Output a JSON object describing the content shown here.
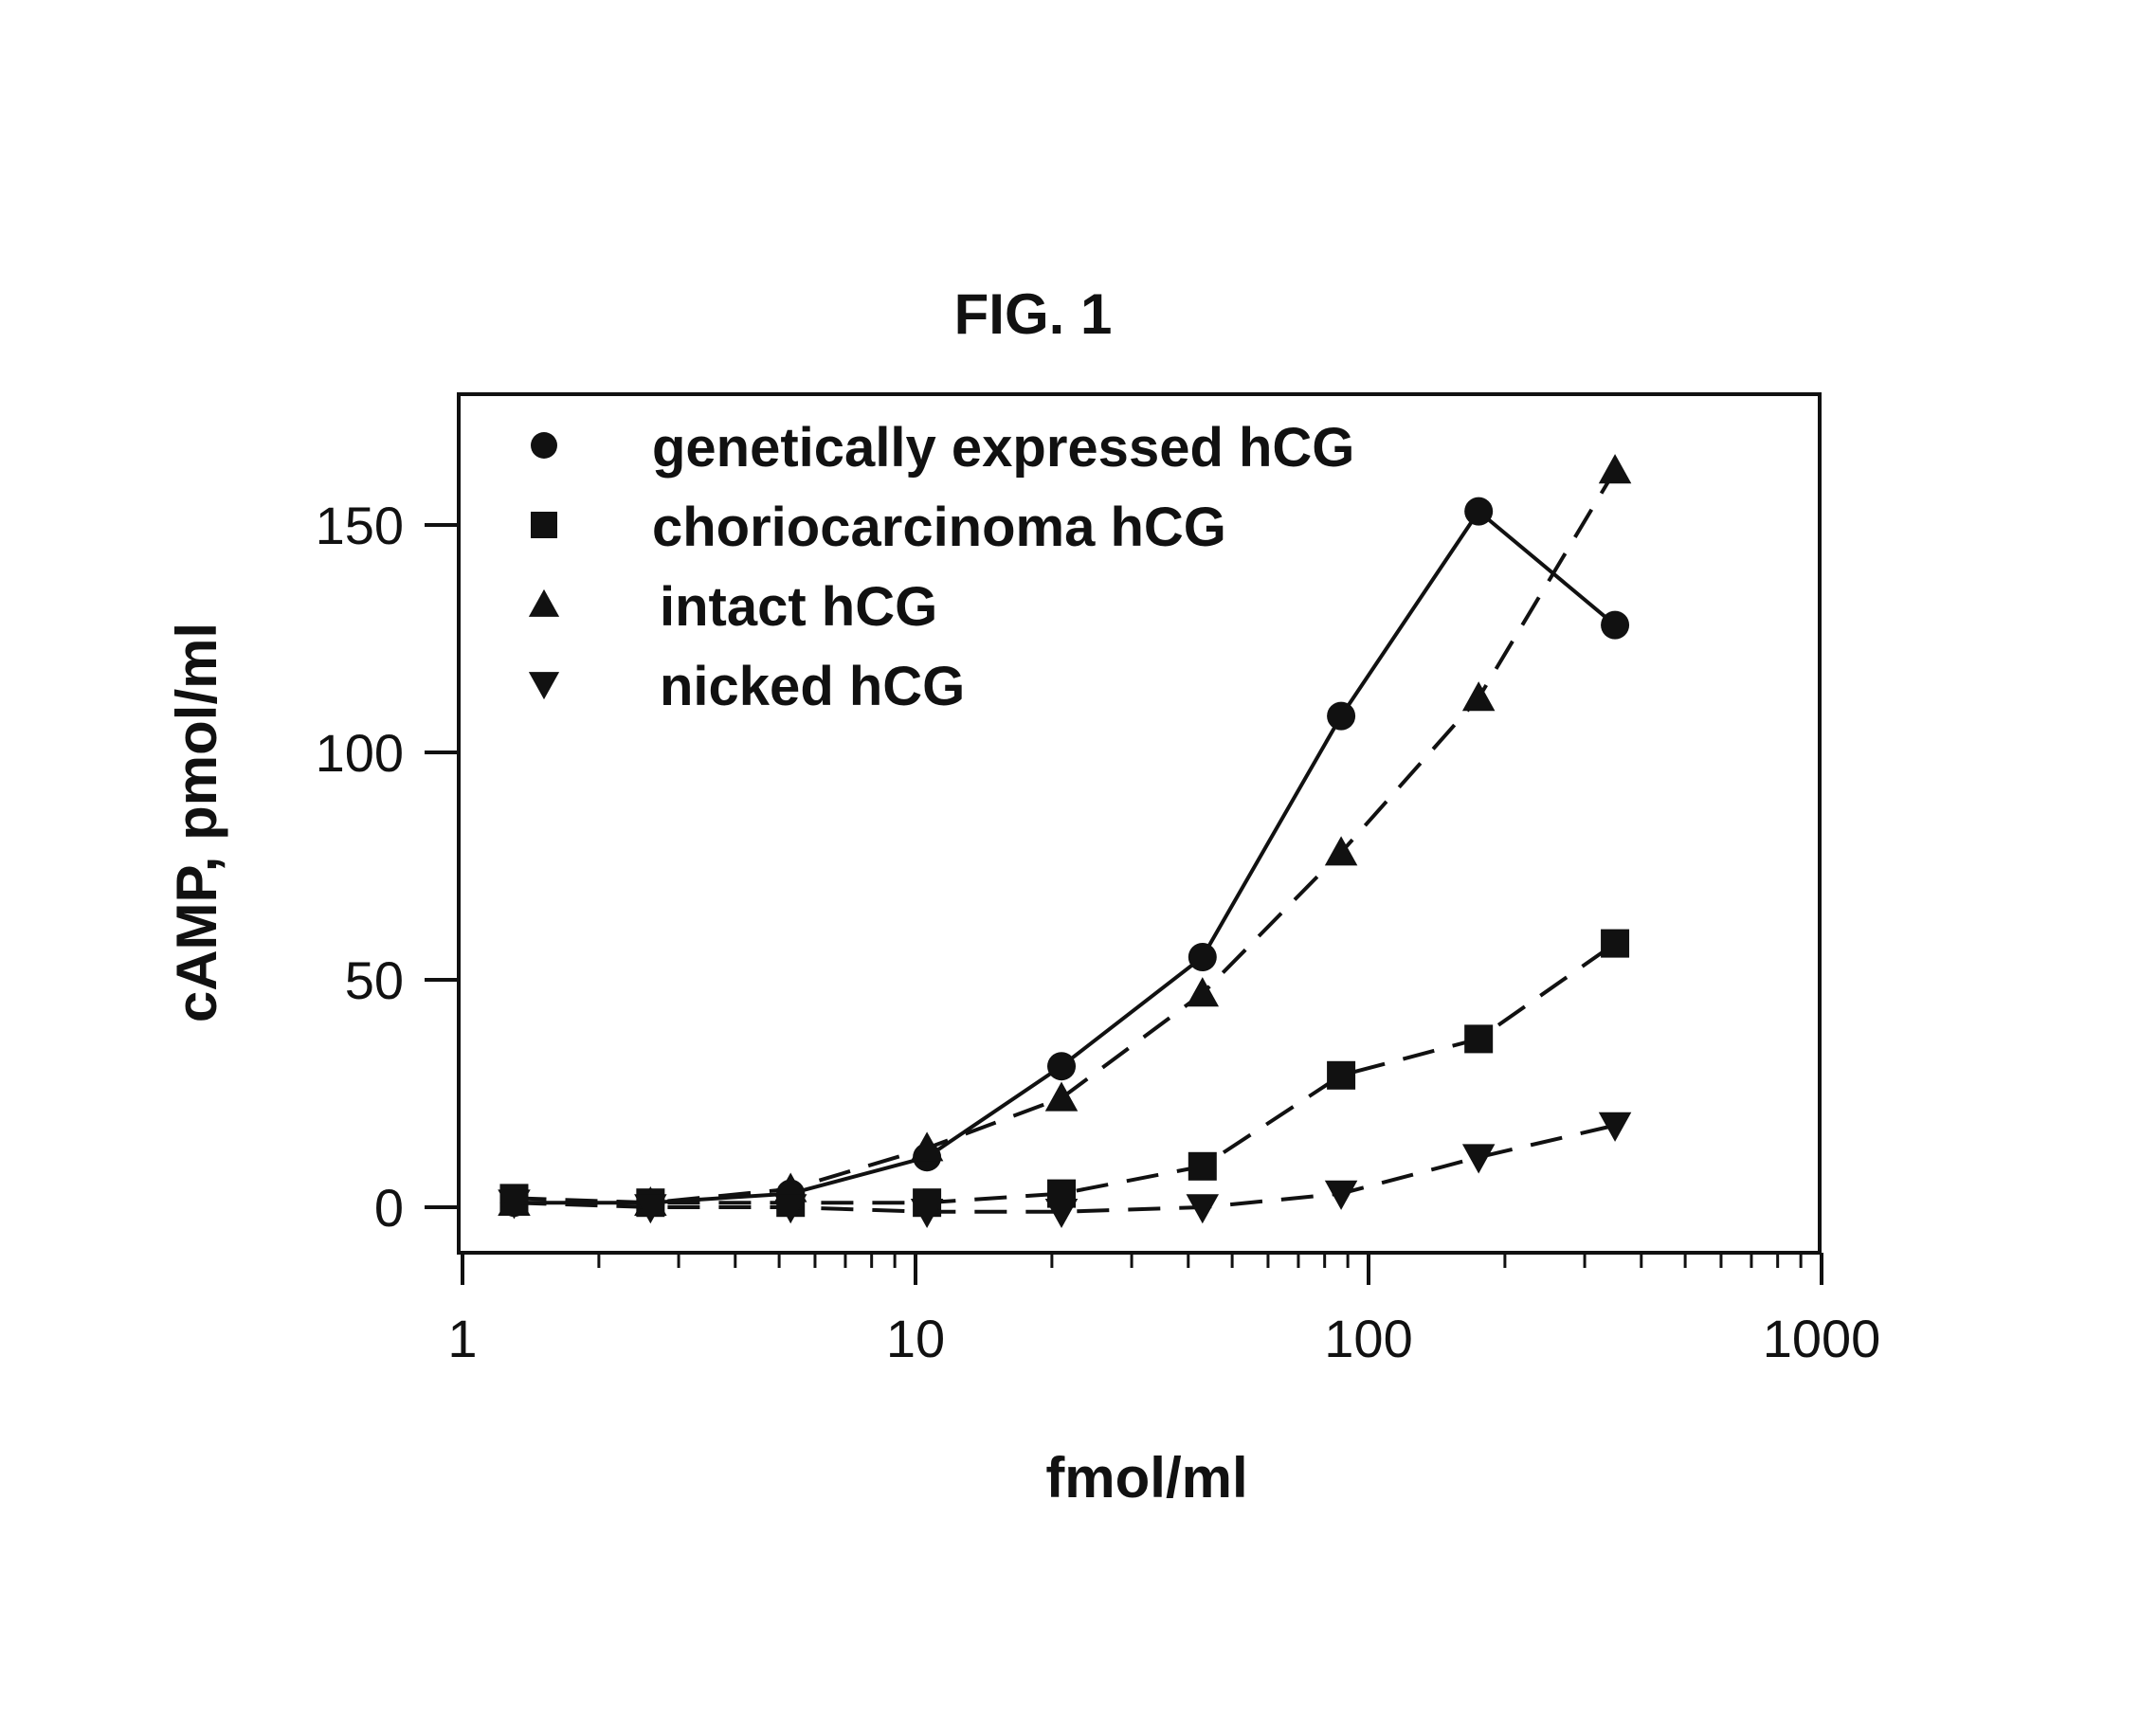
{
  "chart_data": {
    "type": "line",
    "title": "FIG. 1",
    "xlabel": "fmol/ml",
    "ylabel": "cAMP, pmol/ml",
    "x_scale": "log",
    "xlim": [
      1,
      1000
    ],
    "ylim": [
      -10,
      180
    ],
    "x_ticks": [
      1,
      10,
      100,
      1000
    ],
    "x_tick_labels": [
      "1",
      "10",
      "100",
      "1000"
    ],
    "y_ticks": [
      0,
      50,
      100,
      150
    ],
    "y_tick_labels": [
      "0",
      "50",
      "100",
      "150"
    ],
    "grid": false,
    "legend_position": "top-left",
    "x": [
      1.3,
      2.6,
      5.3,
      10.6,
      21,
      43,
      87,
      175,
      350
    ],
    "series": [
      {
        "name": "genetically expressed hCG",
        "marker": "circle",
        "line": "solid",
        "values": [
          1,
          1,
          3,
          11,
          31,
          55,
          108,
          153,
          128
        ]
      },
      {
        "name": "choriocarcinoma hCG",
        "marker": "square",
        "line": "dashed",
        "values": [
          2,
          1,
          1,
          1,
          3,
          9,
          29,
          37,
          58
        ]
      },
      {
        "name": "intact hCG",
        "marker": "triangle-up",
        "line": "dashed",
        "values": [
          1,
          1,
          4,
          13,
          24,
          47,
          78,
          112,
          162
        ]
      },
      {
        "name": "nicked hCG",
        "marker": "triangle-down",
        "line": "dashed",
        "values": [
          1,
          0,
          0,
          -1,
          -1,
          0,
          3,
          11,
          18
        ]
      }
    ]
  }
}
